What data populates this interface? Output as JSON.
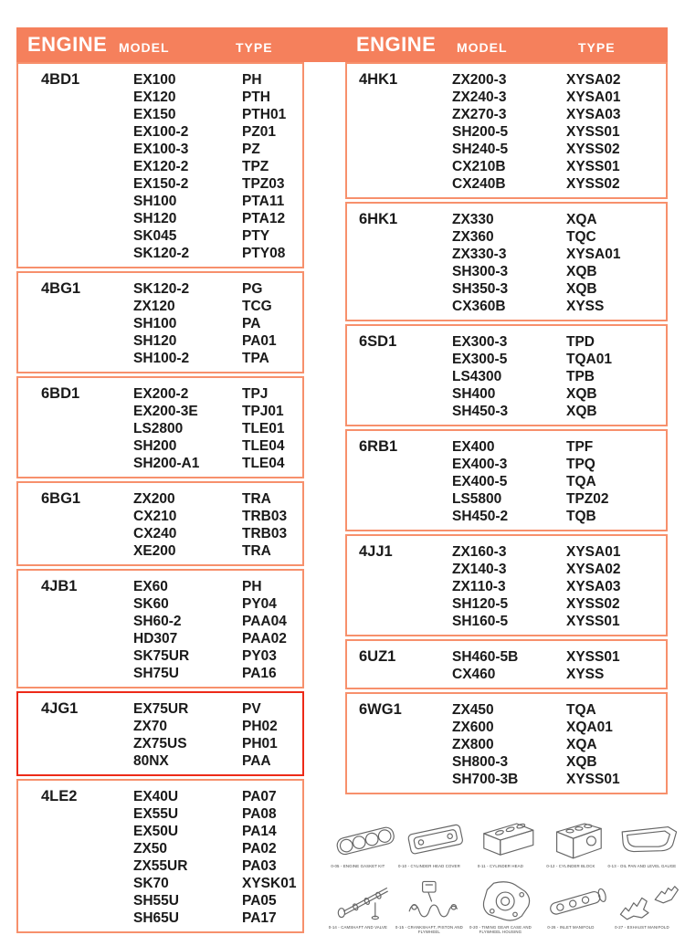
{
  "header": {
    "engine_label": "ENGINE",
    "model_label": "MODEL",
    "type_label": "TYPE"
  },
  "colors": {
    "header_orange": "#F5805C",
    "box_border_orange": "#F7906C",
    "highlight_red": "#ED2A18",
    "text": "#1A1A1A"
  },
  "columns": {
    "left": [
      {
        "engine": "4BD1",
        "highlight": false,
        "rows": [
          {
            "model": "EX100",
            "type": "PH"
          },
          {
            "model": "EX120",
            "type": "PTH"
          },
          {
            "model": "EX150",
            "type": "PTH01"
          },
          {
            "model": "EX100-2",
            "type": "PZ01"
          },
          {
            "model": "EX100-3",
            "type": "PZ"
          },
          {
            "model": "EX120-2",
            "type": "TPZ"
          },
          {
            "model": "EX150-2",
            "type": "TPZ03"
          },
          {
            "model": "SH100",
            "type": "PTA11"
          },
          {
            "model": "SH120",
            "type": "PTA12"
          },
          {
            "model": "SK045",
            "type": "PTY"
          },
          {
            "model": "SK120-2",
            "type": "PTY08"
          }
        ]
      },
      {
        "engine": "4BG1",
        "highlight": false,
        "rows": [
          {
            "model": "SK120-2",
            "type": "PG"
          },
          {
            "model": "ZX120",
            "type": "TCG"
          },
          {
            "model": "SH100",
            "type": "PA"
          },
          {
            "model": "SH120",
            "type": "PA01"
          },
          {
            "model": "SH100-2",
            "type": "TPA"
          }
        ]
      },
      {
        "engine": "6BD1",
        "highlight": false,
        "rows": [
          {
            "model": "EX200-2",
            "type": "TPJ"
          },
          {
            "model": "EX200-3E",
            "type": "TPJ01"
          },
          {
            "model": "LS2800",
            "type": "TLE01"
          },
          {
            "model": "SH200",
            "type": "TLE04"
          },
          {
            "model": "SH200-A1",
            "type": "TLE04"
          }
        ]
      },
      {
        "engine": "6BG1",
        "highlight": false,
        "rows": [
          {
            "model": "ZX200",
            "type": "TRA"
          },
          {
            "model": "CX210",
            "type": "TRB03"
          },
          {
            "model": "CX240",
            "type": "TRB03"
          },
          {
            "model": "XE200",
            "type": "TRA"
          }
        ]
      },
      {
        "engine": "4JB1",
        "highlight": false,
        "rows": [
          {
            "model": "EX60",
            "type": "PH"
          },
          {
            "model": "SK60",
            "type": "PY04"
          },
          {
            "model": "SH60-2",
            "type": "PAA04"
          },
          {
            "model": "HD307",
            "type": "PAA02"
          },
          {
            "model": "SK75UR",
            "type": "PY03"
          },
          {
            "model": "SH75U",
            "type": "PA16"
          }
        ]
      },
      {
        "engine": "4JG1",
        "highlight": true,
        "rows": [
          {
            "model": "EX75UR",
            "type": "PV"
          },
          {
            "model": "ZX70",
            "type": "PH02"
          },
          {
            "model": "ZX75US",
            "type": "PH01"
          },
          {
            "model": "80NX",
            "type": "PAA"
          }
        ]
      },
      {
        "engine": "4LE2",
        "highlight": false,
        "rows": [
          {
            "model": "EX40U",
            "type": "PA07"
          },
          {
            "model": "EX55U",
            "type": "PA08"
          },
          {
            "model": "EX50U",
            "type": "PA14"
          },
          {
            "model": "ZX50",
            "type": "PA02"
          },
          {
            "model": "ZX55UR",
            "type": "PA03"
          },
          {
            "model": "SK70",
            "type": "XYSK01"
          },
          {
            "model": "SH55U",
            "type": "PA05"
          },
          {
            "model": "SH65U",
            "type": "PA17"
          }
        ]
      }
    ],
    "right": [
      {
        "engine": "4HK1",
        "highlight": false,
        "rows": [
          {
            "model": "ZX200-3",
            "type": "XYSA02"
          },
          {
            "model": "ZX240-3",
            "type": "XYSA01"
          },
          {
            "model": "ZX270-3",
            "type": "XYSA03"
          },
          {
            "model": "SH200-5",
            "type": "XYSS01"
          },
          {
            "model": "SH240-5",
            "type": "XYSS02"
          },
          {
            "model": "CX210B",
            "type": "XYSS01"
          },
          {
            "model": "CX240B",
            "type": "XYSS02"
          }
        ]
      },
      {
        "engine": "6HK1",
        "highlight": false,
        "rows": [
          {
            "model": "ZX330",
            "type": "XQA"
          },
          {
            "model": "ZX360",
            "type": "TQC"
          },
          {
            "model": "ZX330-3",
            "type": "XYSA01"
          },
          {
            "model": "SH300-3",
            "type": "XQB"
          },
          {
            "model": "SH350-3",
            "type": "XQB"
          },
          {
            "model": "CX360B",
            "type": "XYSS"
          }
        ]
      },
      {
        "engine": "6SD1",
        "highlight": false,
        "rows": [
          {
            "model": "EX300-3",
            "type": "TPD"
          },
          {
            "model": "EX300-5",
            "type": "TQA01"
          },
          {
            "model": "LS4300",
            "type": "TPB"
          },
          {
            "model": "SH400",
            "type": "XQB"
          },
          {
            "model": "SH450-3",
            "type": "XQB"
          }
        ]
      },
      {
        "engine": "6RB1",
        "highlight": false,
        "rows": [
          {
            "model": "EX400",
            "type": "TPF"
          },
          {
            "model": "EX400-3",
            "type": "TPQ"
          },
          {
            "model": "EX400-5",
            "type": "TQA"
          },
          {
            "model": "LS5800",
            "type": "TPZ02"
          },
          {
            "model": "SH450-2",
            "type": "TQB"
          }
        ]
      },
      {
        "engine": "4JJ1",
        "highlight": false,
        "rows": [
          {
            "model": "ZX160-3",
            "type": "XYSA01"
          },
          {
            "model": "ZX140-3",
            "type": "XYSA02"
          },
          {
            "model": "ZX110-3",
            "type": "XYSA03"
          },
          {
            "model": "SH120-5",
            "type": "XYSS02"
          },
          {
            "model": "SH160-5",
            "type": "XYSS01"
          }
        ]
      },
      {
        "engine": "6UZ1",
        "highlight": false,
        "rows": [
          {
            "model": "SH460-5B",
            "type": "XYSS01"
          },
          {
            "model": "CX460",
            "type": "XYSS"
          }
        ]
      },
      {
        "engine": "6WG1",
        "highlight": false,
        "rows": [
          {
            "model": "ZX450",
            "type": "TQA"
          },
          {
            "model": "ZX600",
            "type": "XQA01"
          },
          {
            "model": "ZX800",
            "type": "XQA"
          },
          {
            "model": "SH800-3",
            "type": "XQB"
          },
          {
            "model": "SH700-3B",
            "type": "XYSS01"
          }
        ]
      }
    ]
  },
  "parts": [
    {
      "icon": "engine-gasket-kit-icon",
      "caption": "0-05 - ENGINE GASKET KIT"
    },
    {
      "icon": "cylinder-head-cover-icon",
      "caption": "0-10 - CYLINDER HEAD COVER"
    },
    {
      "icon": "cylinder-head-icon",
      "caption": "0-11 - CYLINDER HEAD"
    },
    {
      "icon": "cylinder-block-icon",
      "caption": "0-12 - CYLINDER BLOCK"
    },
    {
      "icon": "oil-pan-icon",
      "caption": "0-13 - OIL PAN AND LEVEL GAUGE"
    },
    {
      "icon": "camshaft-icon",
      "caption": "0-14 - CAMSHAFT AND VALVE"
    },
    {
      "icon": "crankshaft-icon",
      "caption": "0-15 - CRANKSHAFT, PISTON AND FLYWHEEL"
    },
    {
      "icon": "timing-gear-case-icon",
      "caption": "0-20 - TIMING GEAR CASE AND FLYWHEEL HOUSING"
    },
    {
      "icon": "inlet-manifold-icon",
      "caption": "0-26 - INLET MANIFOLD"
    },
    {
      "icon": "exhaust-manifold-icon",
      "caption": "0-27 - EXHAUST MANIFOLD"
    }
  ]
}
